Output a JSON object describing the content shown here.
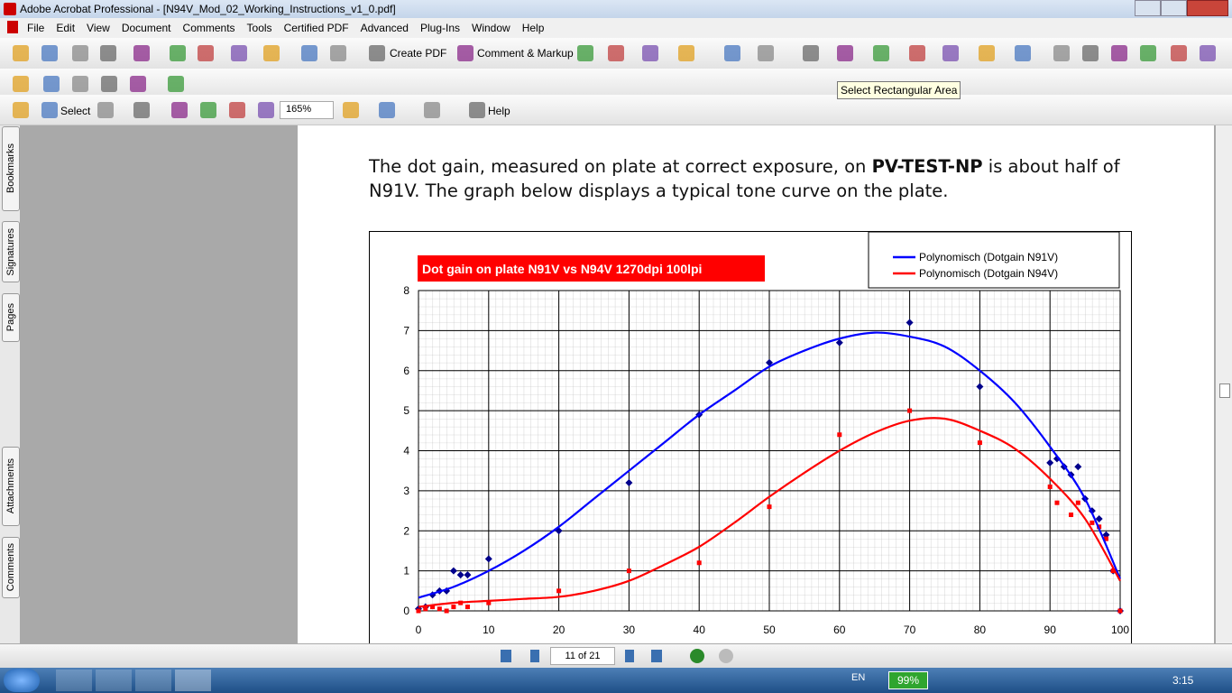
{
  "window": {
    "title": "Adobe Acrobat Professional - [N94V_Mod_02_Working_Instructions_v1_0.pdf]"
  },
  "menu": [
    "File",
    "Edit",
    "View",
    "Document",
    "Comments",
    "Tools",
    "Certified PDF",
    "Advanced",
    "Plug-Ins",
    "Window",
    "Help"
  ],
  "toolbar": {
    "create_pdf": "Create PDF",
    "comment_markup": "Comment & Markup",
    "select": "Select",
    "zoom": "165%",
    "help": "Help",
    "tooltip": "Select Rectangular Area"
  },
  "side_tabs": [
    "Bookmarks",
    "Signatures",
    "Pages",
    "Attachments",
    "Comments"
  ],
  "document": {
    "text_before": "The dot gain, measured on plate at correct exposure, on ",
    "bold": "PV-TEST-NP",
    "text_after": " is about half of N91V. The graph below displays a typical tone curve on the plate."
  },
  "chart_data": {
    "type": "scatter",
    "title": "Dot gain on plate N91V vs N94V 1270dpi 100lpi",
    "xlim": [
      0,
      100
    ],
    "xticks": [
      0,
      10,
      20,
      30,
      40,
      50,
      60,
      70,
      80,
      90,
      100
    ],
    "ylim": [
      0,
      8
    ],
    "yticks": [
      0,
      1,
      2,
      3,
      4,
      5,
      6,
      7,
      8
    ],
    "grid": true,
    "legend": "top-right",
    "series": [
      {
        "name": "Polynomisch (Dotgain N91V)",
        "color": "#0000ff",
        "x": [
          0,
          5,
          10,
          15,
          20,
          25,
          30,
          35,
          40,
          45,
          50,
          55,
          60,
          65,
          70,
          75,
          80,
          85,
          90,
          95,
          100
        ],
        "values": [
          0.33,
          0.6,
          1.0,
          1.5,
          2.1,
          2.8,
          3.5,
          4.2,
          4.9,
          5.5,
          6.1,
          6.5,
          6.8,
          6.95,
          6.85,
          6.6,
          6.0,
          5.2,
          4.1,
          2.8,
          0.8
        ]
      },
      {
        "name": "Polynomisch (Dotgain N94V)",
        "color": "#ff0000",
        "x": [
          0,
          5,
          10,
          15,
          20,
          25,
          30,
          35,
          40,
          45,
          50,
          55,
          60,
          65,
          70,
          75,
          80,
          85,
          90,
          95,
          100
        ],
        "values": [
          0.1,
          0.2,
          0.25,
          0.3,
          0.35,
          0.5,
          0.75,
          1.15,
          1.6,
          2.2,
          2.85,
          3.45,
          4.0,
          4.45,
          4.75,
          4.8,
          4.5,
          4.05,
          3.3,
          2.3,
          0.75
        ]
      }
    ],
    "points": [
      {
        "color": "#00008b",
        "shape": "diamond",
        "x": [
          0,
          1,
          2,
          3,
          4,
          5,
          6,
          7,
          10,
          20,
          30,
          40,
          50,
          60,
          70,
          80,
          90,
          91,
          92,
          93,
          94,
          95,
          96,
          97,
          98,
          99,
          100
        ],
        "values": [
          0.05,
          0.1,
          0.4,
          0.5,
          0.5,
          1.0,
          0.9,
          0.9,
          1.3,
          2.0,
          3.2,
          4.9,
          6.2,
          6.7,
          7.2,
          5.6,
          3.7,
          3.8,
          3.6,
          3.4,
          3.6,
          2.8,
          2.5,
          2.3,
          1.9,
          1.0,
          0
        ]
      },
      {
        "color": "#ff0000",
        "shape": "square",
        "x": [
          0,
          1,
          2,
          3,
          4,
          5,
          6,
          7,
          10,
          20,
          30,
          40,
          50,
          60,
          70,
          80,
          90,
          91,
          93,
          94,
          96,
          97,
          98,
          99,
          100
        ],
        "values": [
          0,
          0.05,
          0.1,
          0.05,
          0,
          0.1,
          0.2,
          0.1,
          0.2,
          0.5,
          1.0,
          1.2,
          2.6,
          4.4,
          5.0,
          4.2,
          3.1,
          2.7,
          2.4,
          2.7,
          2.2,
          2.1,
          1.8,
          1.0,
          0
        ]
      }
    ]
  },
  "navigation": {
    "page": "11 of 21"
  },
  "taskbar": {
    "language": "EN",
    "battery": "99%",
    "time": "3:15"
  }
}
